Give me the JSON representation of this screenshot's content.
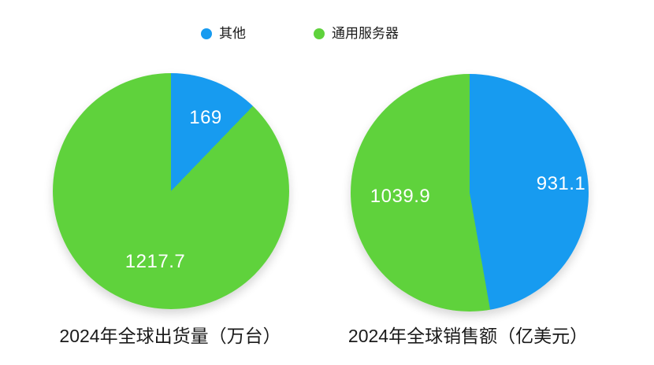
{
  "colors": {
    "other": "#179BF0",
    "general_server": "#5FD23C",
    "slice_label_text": "#FFFFFF",
    "title_text": "#1A1A1A",
    "background": "#FFFFFF"
  },
  "legend": {
    "position": "top",
    "items": [
      {
        "label": "其他",
        "color": "#179BF0"
      },
      {
        "label": "通用服务器",
        "color": "#5FD23C"
      }
    ]
  },
  "chart_data": [
    {
      "type": "pie",
      "title": "2024年全球出货量（万台）",
      "series_labels": [
        "其他",
        "通用服务器"
      ],
      "values": [
        169,
        1217.7
      ],
      "value_labels": [
        "169",
        "1217.7"
      ],
      "colors": [
        "#179BF0",
        "#5FD23C"
      ],
      "start_angle_deg": 0,
      "direction": "clockwise",
      "legend_position": "top"
    },
    {
      "type": "pie",
      "title": "2024年全球销售额（亿美元）",
      "series_labels": [
        "其他",
        "通用服务器"
      ],
      "values": [
        931.1,
        1039.9
      ],
      "value_labels": [
        "931.1",
        "1039.9"
      ],
      "colors": [
        "#179BF0",
        "#5FD23C"
      ],
      "start_angle_deg": 0,
      "direction": "clockwise",
      "legend_position": "top"
    }
  ]
}
